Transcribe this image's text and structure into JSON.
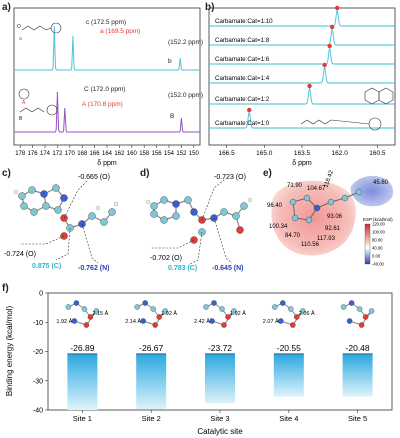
{
  "panels": {
    "a": "a)",
    "b": "b)",
    "c": "c)",
    "d": "d)",
    "e": "e)",
    "f": "f)"
  },
  "panel_a": {
    "xlabel": "δ ppm",
    "xticks": [
      "178",
      "176",
      "174",
      "172",
      "170",
      "168",
      "166",
      "164",
      "162",
      "160",
      "158",
      "156",
      "154",
      "152",
      "150"
    ],
    "top_labels": {
      "c": "c (172.5 ppm)",
      "a": "a (169.5 ppm)",
      "b": "(152.2 ppm)",
      "b_letter": "b"
    },
    "bottom_labels": {
      "C": "C (172.0 ppm)",
      "A": "A (170.8 ppm)",
      "B": "(152.0 ppm)",
      "B_letter": "B"
    },
    "colors": {
      "top": "#4fc3d9",
      "bottom": "#9b4fc4",
      "highlight": "#e53935"
    }
  },
  "panel_b": {
    "xlabel": "δ ppm",
    "xticks": [
      "166.5",
      "165.0",
      "163.5",
      "162.0",
      "160.5"
    ],
    "ratios": [
      "Carbamate:Cat=1:10",
      "Carbamate:Cat=1:8",
      "Carbamate:Cat=1:6",
      "Carbamate:Cat=1:4",
      "Carbamate:Cat=1:2",
      "Carbamate:Cat=1:0"
    ],
    "peak_ppm": [
      162.1,
      162.3,
      162.4,
      162.6,
      163.2,
      165.6
    ]
  },
  "panel_c": {
    "labels": {
      "o1": "-0.665 (O)",
      "o2": "-0.724 (O)",
      "c": "0.875 (C)",
      "n": "-0.762 (N)"
    }
  },
  "panel_d": {
    "labels": {
      "o1": "-0.723 (O)",
      "o2": "-0.702 (O)",
      "c": "0.783 (C)",
      "n": "-0.645 (N)"
    }
  },
  "panel_e": {
    "values": [
      "71.90",
      "104.67",
      "118.42",
      "45.60",
      "96.40",
      "93.06",
      "100.34",
      "84.70",
      "110.56",
      "92.61",
      "117.93"
    ],
    "legend_title": "ESP (kcal/mol)",
    "legend_ticks": [
      "-40.00",
      "0.00",
      "40.00",
      "80.00",
      "100.00",
      "120.00"
    ]
  },
  "chart_data": {
    "type": "bar",
    "categories": [
      "Site 1",
      "Site 2",
      "Site 3",
      "Site 4",
      "Site 5"
    ],
    "values": [
      -26.89,
      -26.67,
      -23.72,
      -20.55,
      -20.48
    ],
    "value_labels": [
      "-26.89",
      "-26.67",
      "-23.72",
      "-20.55",
      "-20.48"
    ],
    "xlabel": "Catalytic site",
    "ylabel": "Binding energy (kcal/mol)",
    "ylim": [
      0,
      -40
    ],
    "yticks": [
      "0",
      "-10",
      "-20",
      "-30",
      "-40"
    ],
    "bond_labels": [
      [
        "1.92 Å",
        "2.15 Å"
      ],
      [
        "2.14 Å",
        "1.92 Å"
      ],
      [
        "2.42 Å",
        "1.92 Å"
      ],
      [
        "2.07 Å",
        "2.06 Å"
      ],
      []
    ],
    "bar_color": "#29a8e0"
  }
}
